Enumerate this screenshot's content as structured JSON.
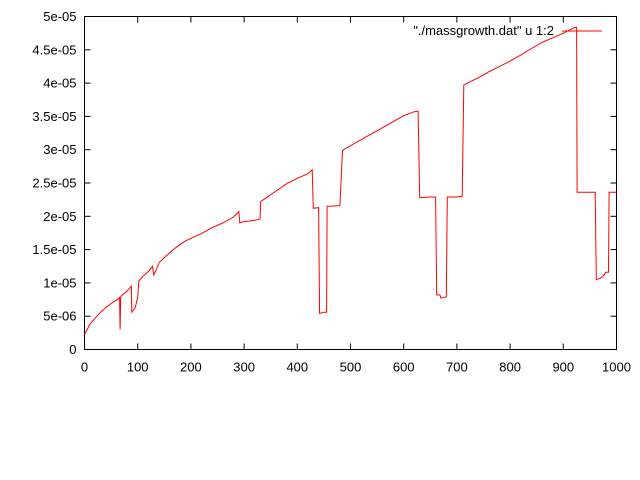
{
  "chart_data": {
    "type": "line",
    "title": "",
    "xlabel": "",
    "ylabel": "",
    "xlim": [
      0,
      1000
    ],
    "ylim": [
      0,
      5e-05
    ],
    "x_ticks": [
      0,
      100,
      200,
      300,
      400,
      500,
      600,
      700,
      800,
      900,
      1000
    ],
    "x_tick_labels": [
      "0",
      "100",
      "200",
      "300",
      "400",
      "500",
      "600",
      "700",
      "800",
      "900",
      "1000"
    ],
    "y_ticks": [
      0,
      5e-06,
      1e-05,
      1.5e-05,
      2e-05,
      2.5e-05,
      3e-05,
      3.5e-05,
      4e-05,
      4.5e-05,
      5e-05
    ],
    "y_tick_labels": [
      "0",
      "5e-06",
      "1e-05",
      "1.5e-05",
      "2e-05",
      "2.5e-05",
      "3e-05",
      "3.5e-05",
      "4e-05",
      "4.5e-05",
      "5e-05"
    ],
    "grid": false,
    "legend_position": "top-right",
    "series": [
      {
        "name": "\"./massgrowth.dat\" u 1:2",
        "color": "#ff0000",
        "x": [
          0,
          5,
          10,
          20,
          30,
          40,
          50,
          60,
          66,
          67,
          68,
          70,
          80,
          88,
          89,
          95,
          100,
          102,
          110,
          120,
          128,
          130,
          135,
          140,
          150,
          160,
          170,
          180,
          190,
          200,
          220,
          240,
          260,
          280,
          290,
          292,
          300,
          310,
          320,
          330,
          331,
          340,
          360,
          380,
          400,
          420,
          428,
          430,
          440,
          442,
          450,
          455,
          456,
          460,
          480,
          485,
          487,
          500,
          520,
          540,
          560,
          580,
          600,
          620,
          627,
          630,
          650,
          660,
          662,
          668,
          670,
          680,
          682,
          700,
          710,
          713,
          720,
          740,
          760,
          780,
          800,
          820,
          840,
          860,
          880,
          900,
          920,
          925,
          926,
          940,
          960,
          962,
          970,
          975,
          980,
          985,
          986,
          990,
          1000
        ],
        "y": [
          2.3e-06,
          3e-06,
          3.8e-06,
          4.7e-06,
          5.6e-06,
          6.3e-06,
          6.9e-06,
          7.4e-06,
          7.8e-06,
          3e-06,
          7.9e-06,
          8.1e-06,
          8.8e-06,
          9.5e-06,
          5.6e-06,
          6.2e-06,
          7.8e-06,
          1.03e-05,
          1.1e-05,
          1.17e-05,
          1.25e-05,
          1.12e-05,
          1.2e-05,
          1.3e-05,
          1.38e-05,
          1.45e-05,
          1.52e-05,
          1.58e-05,
          1.63e-05,
          1.67e-05,
          1.74e-05,
          1.83e-05,
          1.9e-05,
          1.99e-05,
          2.07e-05,
          1.9e-05,
          1.92e-05,
          1.93e-05,
          1.94e-05,
          1.96e-05,
          2.22e-05,
          2.27e-05,
          2.38e-05,
          2.49e-05,
          2.57e-05,
          2.64e-05,
          2.7e-05,
          2.12e-05,
          2.13e-05,
          5.4e-06,
          5.6e-06,
          5.6e-06,
          2.15e-05,
          2.15e-05,
          2.16e-05,
          2.98e-05,
          3e-05,
          3.06e-05,
          3.15e-05,
          3.24e-05,
          3.33e-05,
          3.42e-05,
          3.51e-05,
          3.57e-05,
          3.58e-05,
          2.28e-05,
          2.29e-05,
          2.29e-05,
          8.2e-06,
          8.2e-06,
          7.7e-06,
          7.9e-06,
          2.29e-05,
          2.29e-05,
          2.3e-05,
          3.97e-05,
          4e-05,
          4.08e-05,
          4.17e-05,
          4.25e-05,
          4.33e-05,
          4.42e-05,
          4.52e-05,
          4.61e-05,
          4.68e-05,
          4.75e-05,
          4.83e-05,
          4.84e-05,
          2.36e-05,
          2.36e-05,
          2.36e-05,
          1.05e-05,
          1.07e-05,
          1.1e-05,
          1.16e-05,
          1.16e-05,
          2.36e-05,
          2.36e-05,
          2.36e-05
        ]
      }
    ]
  }
}
